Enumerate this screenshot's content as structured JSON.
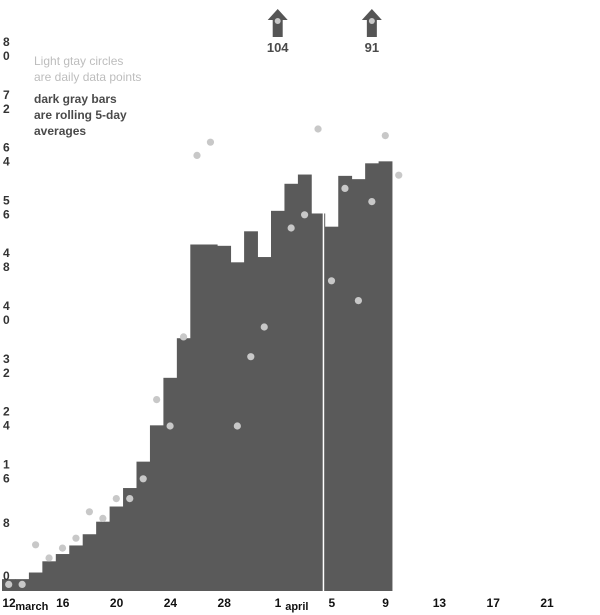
{
  "chart_data": {
    "type": "bar",
    "title": "",
    "xlabel": "",
    "ylabel": "",
    "ylim": [
      0,
      80
    ],
    "grid": false,
    "colors": {
      "bar": "#5a5a5a",
      "dot": "#c8c8c8",
      "divider": "#ffffff"
    },
    "yticks": [
      "0",
      "8",
      "16",
      "24",
      "32",
      "40",
      "48",
      "56",
      "64",
      "72",
      "80"
    ],
    "xticks": [
      {
        "day": 12,
        "label": "12"
      },
      {
        "day": 16,
        "label": "16"
      },
      {
        "day": 20,
        "label": "20"
      },
      {
        "day": 24,
        "label": "24"
      },
      {
        "day": 28,
        "label": "28"
      },
      {
        "day": 32,
        "label": "1"
      },
      {
        "day": 36,
        "label": "5"
      },
      {
        "day": 40,
        "label": "9"
      },
      {
        "day": 44,
        "label": "13"
      },
      {
        "day": 48,
        "label": "17"
      },
      {
        "day": 52,
        "label": "21"
      }
    ],
    "month_labels": [
      {
        "day": 13.7,
        "label": "march"
      },
      {
        "day": 33.4,
        "label": "april"
      }
    ],
    "rolling_avg": {
      "name": "dark gray bars",
      "days": [
        12,
        13,
        14,
        15,
        16,
        17,
        18,
        19,
        20,
        21,
        22,
        23,
        24,
        25,
        26,
        27,
        28,
        29,
        30,
        31,
        32,
        33,
        34,
        35,
        36,
        37,
        38,
        39,
        40
      ],
      "values": [
        1.8,
        1.8,
        2.8,
        4.5,
        5.6,
        6.9,
        8.6,
        10.5,
        12.8,
        15.6,
        19.6,
        25.1,
        32.3,
        38.3,
        52.5,
        52.5,
        52.3,
        49.8,
        54.5,
        50.6,
        57.6,
        61.7,
        63.1,
        57.2,
        55.2,
        62.9,
        62.4,
        64.8,
        65.1
      ]
    },
    "daily": {
      "name": "Light gray circles",
      "days": [
        12,
        13,
        14,
        15,
        16,
        17,
        18,
        19,
        20,
        21,
        22,
        23,
        24,
        25,
        26,
        27,
        28,
        29,
        30,
        31,
        32,
        33,
        34,
        35,
        36,
        37,
        38,
        39,
        40,
        41
      ],
      "values": [
        1,
        1,
        7,
        5,
        6.5,
        8,
        12,
        11,
        14,
        14,
        17,
        29,
        25,
        38.5,
        66,
        68,
        80,
        25,
        35.5,
        40,
        82,
        55,
        57,
        70,
        47,
        61,
        44,
        59,
        69,
        63
      ]
    },
    "arrows": [
      {
        "day": 32,
        "label": "104"
      },
      {
        "day": 39,
        "label": "91"
      }
    ],
    "divider_day": 35.9,
    "annotations": {
      "light_line1": "Light gtay circles",
      "light_line2": "are daily data points",
      "dark_line1": "dark gray bars",
      "dark_line2": "are rolling 5-day",
      "dark_line3": "averages"
    }
  }
}
